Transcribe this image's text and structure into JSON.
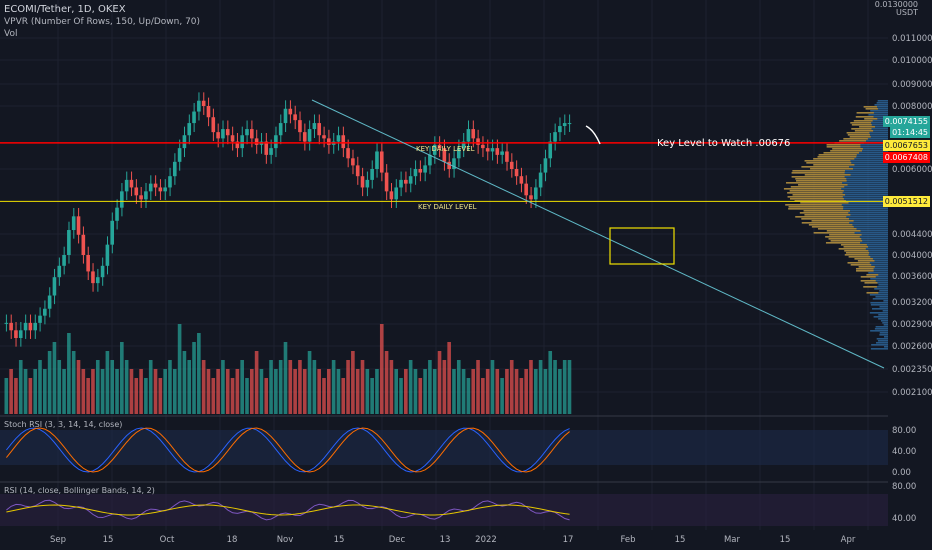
{
  "header": {
    "symbol_line": "ECOMI/Tether, 1D, OKEX",
    "vpvr_line": "VPVR (Number Of Rows, 150, Up/Down, 70)",
    "vol_line": "Vol",
    "currency": "USDT",
    "top_price": "0.0130000"
  },
  "colors": {
    "background": "#131722",
    "up": "#26a69a",
    "down": "#ef5350",
    "key_level_red": "#ff0000",
    "support_yellow": "#f0e000",
    "trendline": "#5fb8c6",
    "vp_blue": "#2f6fa8",
    "vp_gold": "#b8892b",
    "stoch_k": "#2962ff",
    "stoch_d": "#ff6d00",
    "rsi_line": "#7e57c2",
    "rsi_ma": "#e6c700"
  },
  "annotations": {
    "key_level_text": "Key Level to Watch .00676",
    "key_daily_level_1": "KEY DAILY LEVEL",
    "key_daily_level_2": "KEY DAILY LEVEL"
  },
  "price_badges": [
    {
      "text": "0.0074155",
      "bg": "#26a69a"
    },
    {
      "text": "01:14:45",
      "bg": "#26a69a"
    },
    {
      "text": "0.0067653",
      "bg": "#ffeb3b",
      "fg": "#131722"
    },
    {
      "text": "0.0067408",
      "bg": "#ff0000"
    },
    {
      "text": "0.0051512",
      "bg": "#ffeb3b",
      "fg": "#131722"
    }
  ],
  "indicators": {
    "stoch_label": "Stoch RSI (3, 3, 14, 14, close)",
    "rsi_label": "RSI (14, close, Bollinger Bands, 14, 2)"
  },
  "chart_data": {
    "type": "candlestick",
    "y_axis_ticks": [
      "0.0110000",
      "0.0100000",
      "0.0090000",
      "0.0080000",
      "0.0060000",
      "0.0044000",
      "0.0040000",
      "0.0036000",
      "0.0032000",
      "0.0029000",
      "0.0026000",
      "0.0023500",
      "0.0021000"
    ],
    "x_axis_ticks": [
      "Sep",
      "15",
      "Oct",
      "18",
      "Nov",
      "15",
      "Dec",
      "13",
      "2022",
      "17",
      "Feb",
      "15",
      "Mar",
      "15",
      "Apr"
    ],
    "key_level": 0.00676,
    "support_level": 0.00515,
    "last_price": 0.0074155,
    "stoch_rsi_ticks": [
      "80.00",
      "40.00",
      "0.00"
    ],
    "rsi_ticks": [
      "80.00",
      "40.00"
    ],
    "close_series": [
      0.0029,
      0.0028,
      0.0027,
      0.0028,
      0.0029,
      0.0028,
      0.0029,
      0.003,
      0.0031,
      0.0033,
      0.0036,
      0.0038,
      0.004,
      0.0045,
      0.0048,
      0.0044,
      0.004,
      0.0037,
      0.0035,
      0.0036,
      0.0038,
      0.0042,
      0.0047,
      0.005,
      0.0054,
      0.0057,
      0.0055,
      0.0053,
      0.0052,
      0.0054,
      0.0056,
      0.0055,
      0.0054,
      0.0055,
      0.0058,
      0.0062,
      0.0066,
      0.007,
      0.0074,
      0.0078,
      0.0082,
      0.008,
      0.0076,
      0.0071,
      0.0069,
      0.0072,
      0.007,
      0.0068,
      0.0066,
      0.007,
      0.0072,
      0.0069,
      0.0067,
      0.0068,
      0.0064,
      0.0066,
      0.007,
      0.0074,
      0.0079,
      0.0077,
      0.0075,
      0.0071,
      0.0068,
      0.0072,
      0.0074,
      0.007,
      0.0069,
      0.0067,
      0.0068,
      0.007,
      0.0066,
      0.0063,
      0.0061,
      0.0058,
      0.0055,
      0.0057,
      0.006,
      0.0065,
      0.0059,
      0.0054,
      0.0052,
      0.0055,
      0.0057,
      0.0056,
      0.0058,
      0.006,
      0.0059,
      0.0061,
      0.0064,
      0.0067,
      0.0066,
      0.0062,
      0.006,
      0.0063,
      0.0066,
      0.0068,
      0.0072,
      0.0069,
      0.0067,
      0.0066,
      0.0065,
      0.0066,
      0.0064,
      0.0065,
      0.0062,
      0.006,
      0.0058,
      0.0056,
      0.0053,
      0.0052,
      0.0055,
      0.0059,
      0.0063,
      0.0068,
      0.0071,
      0.0073,
      0.0074,
      0.0074
    ],
    "volume_series": [
      0.4,
      0.5,
      0.4,
      0.6,
      0.5,
      0.4,
      0.5,
      0.6,
      0.5,
      0.7,
      0.8,
      0.6,
      0.5,
      0.9,
      0.7,
      0.6,
      0.5,
      0.4,
      0.5,
      0.6,
      0.5,
      0.7,
      0.6,
      0.5,
      0.8,
      0.6,
      0.5,
      0.4,
      0.5,
      0.4,
      0.6,
      0.5,
      0.4,
      0.5,
      0.6,
      0.5,
      1.0,
      0.7,
      0.6,
      0.8,
      0.9,
      0.6,
      0.5,
      0.4,
      0.5,
      0.6,
      0.5,
      0.4,
      0.5,
      0.6,
      0.4,
      0.5,
      0.7,
      0.5,
      0.4,
      0.6,
      0.5,
      0.6,
      0.8,
      0.6,
      0.5,
      0.6,
      0.5,
      0.7,
      0.6,
      0.5,
      0.4,
      0.5,
      0.6,
      0.5,
      0.4,
      0.6,
      0.7,
      0.5,
      0.6,
      0.5,
      0.4,
      0.5,
      1.0,
      0.7,
      0.6,
      0.5,
      0.4,
      0.5,
      0.6,
      0.5,
      0.4,
      0.5,
      0.6,
      0.5,
      0.7,
      0.6,
      0.8,
      0.5,
      0.6,
      0.5,
      0.4,
      0.5,
      0.6,
      0.4,
      0.5,
      0.6,
      0.5,
      0.4,
      0.5,
      0.6,
      0.5,
      0.4,
      0.5,
      0.6,
      0.5,
      0.6,
      0.5,
      0.7,
      0.6,
      0.5,
      0.6,
      0.6
    ]
  }
}
